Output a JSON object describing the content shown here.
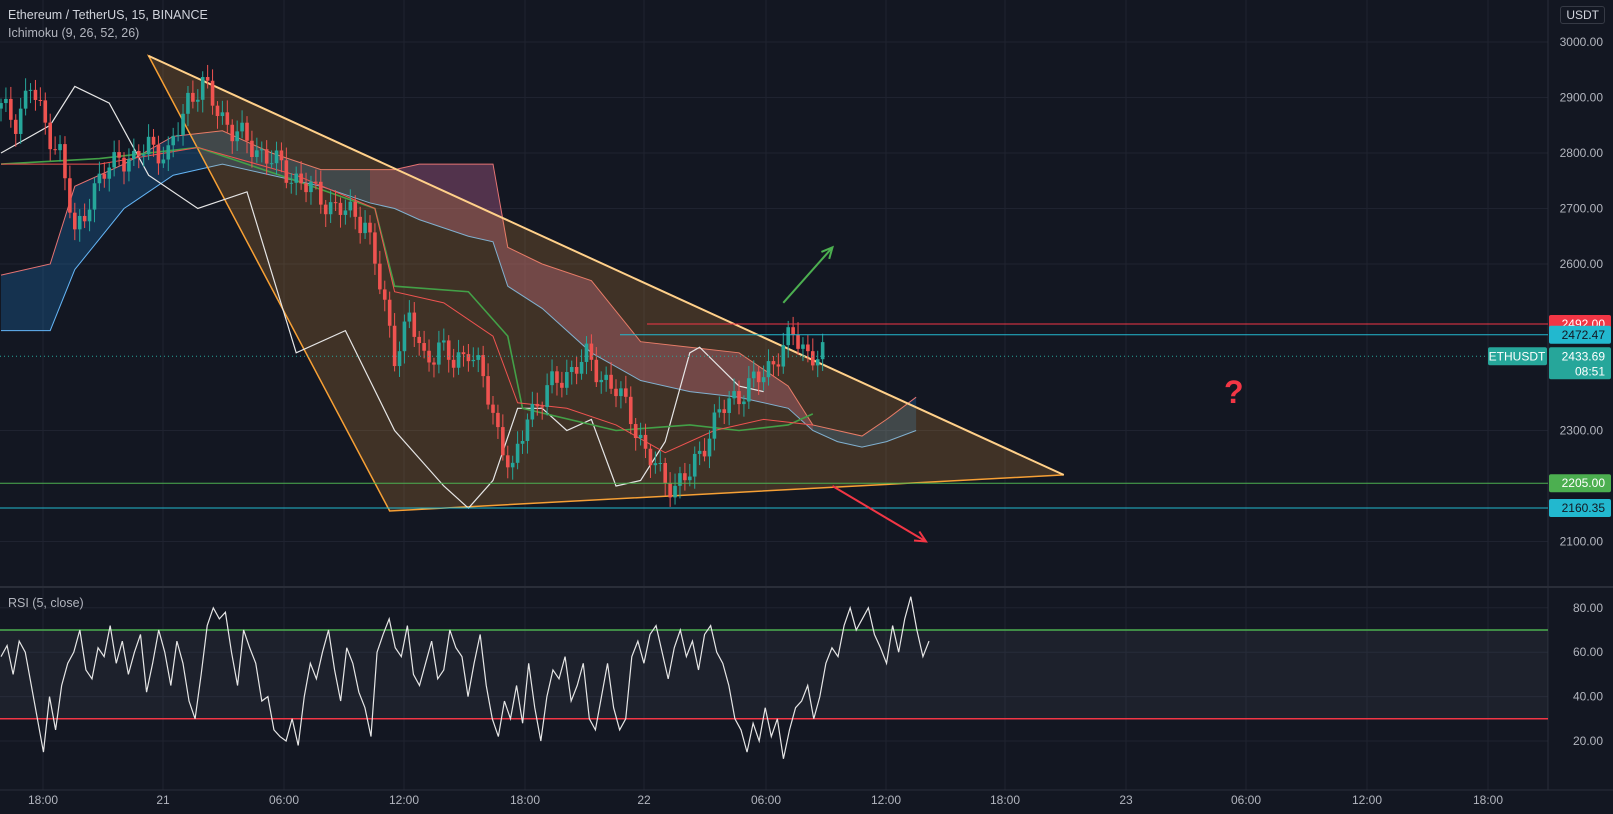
{
  "header": {
    "symbol": "Ethereum / TetherUS, 15, BINANCE",
    "indicator": "Ichimoku (9, 26, 52, 26)",
    "currency_button": "USDT"
  },
  "rsi_panel": {
    "title": "RSI (5, close)"
  },
  "markers": {
    "question": "?"
  },
  "colors": {
    "background": "#131722",
    "candle_up": "#26a69a",
    "candle_down": "#ef5350",
    "triangle": "#f7a035",
    "resistance": "#f23645",
    "support": "#4caf50",
    "level_cyan": "#22b8cf"
  },
  "chart_data": [
    {
      "type": "candlestick",
      "title": "Ethereum / TetherUS, 15, BINANCE",
      "y_ticks": [
        3000,
        2900,
        2800,
        2700,
        2600,
        2300,
        2100
      ],
      "ylim": [
        2050,
        3025
      ],
      "x_ticks": [
        "18:00",
        "21",
        "06:00",
        "12:00",
        "18:00",
        "22",
        "06:00",
        "12:00",
        "18:00",
        "23",
        "06:00",
        "12:00",
        "18:00"
      ],
      "current_price": {
        "symbol": "ETHUSDT",
        "price": 2433.69,
        "countdown": "08:51"
      },
      "price_levels": [
        {
          "value": 2492.0,
          "label": "2492.00",
          "color": "#f23645"
        },
        {
          "value": 2472.47,
          "label": "2472.47",
          "color": "#22b8cf"
        },
        {
          "value": 2205.0,
          "label": "2205.00",
          "color": "#4caf50"
        },
        {
          "value": 2160.35,
          "label": "2160.35",
          "color": "#22b8cf"
        }
      ],
      "close_path": [
        [
          0,
          2880
        ],
        [
          3,
          2860
        ],
        [
          6,
          2920
        ],
        [
          9,
          2850
        ],
        [
          12,
          2800
        ],
        [
          15,
          2650
        ],
        [
          18,
          2720
        ],
        [
          21,
          2760
        ],
        [
          24,
          2800
        ],
        [
          27,
          2780
        ],
        [
          30,
          2820
        ],
        [
          34,
          2790
        ],
        [
          38,
          2900
        ],
        [
          41,
          2920
        ],
        [
          44,
          2880
        ],
        [
          47,
          2840
        ],
        [
          50,
          2820
        ],
        [
          53,
          2800
        ],
        [
          56,
          2780
        ],
        [
          59,
          2760
        ],
        [
          62,
          2740
        ],
        [
          65,
          2720
        ],
        [
          68,
          2700
        ],
        [
          71,
          2690
        ],
        [
          74,
          2680
        ],
        [
          77,
          2560
        ],
        [
          80,
          2440
        ],
        [
          83,
          2500
        ],
        [
          86,
          2430
        ],
        [
          89,
          2450
        ],
        [
          92,
          2420
        ],
        [
          95,
          2450
        ],
        [
          98,
          2390
        ],
        [
          101,
          2300
        ],
        [
          104,
          2220
        ],
        [
          107,
          2330
        ],
        [
          110,
          2360
        ],
        [
          113,
          2390
        ],
        [
          116,
          2410
        ],
        [
          119,
          2430
        ],
        [
          122,
          2400
        ],
        [
          125,
          2370
        ],
        [
          128,
          2330
        ],
        [
          131,
          2260
        ],
        [
          134,
          2220
        ],
        [
          137,
          2200
        ],
        [
          140,
          2220
        ],
        [
          143,
          2280
        ],
        [
          146,
          2330
        ],
        [
          149,
          2360
        ],
        [
          152,
          2380
        ],
        [
          155,
          2400
        ],
        [
          158,
          2440
        ],
        [
          161,
          2470
        ],
        [
          164,
          2440
        ],
        [
          167,
          2434
        ]
      ],
      "tenkan": [
        [
          0,
          2780
        ],
        [
          20,
          2780
        ],
        [
          40,
          2810
        ],
        [
          60,
          2760
        ],
        [
          76,
          2700
        ],
        [
          80,
          2550
        ],
        [
          90,
          2530
        ],
        [
          100,
          2470
        ],
        [
          105,
          2350
        ],
        [
          115,
          2340
        ],
        [
          125,
          2310
        ],
        [
          135,
          2260
        ],
        [
          145,
          2300
        ],
        [
          155,
          2320
        ],
        [
          165,
          2310
        ]
      ],
      "kijun": [
        [
          0,
          2780
        ],
        [
          20,
          2790
        ],
        [
          40,
          2810
        ],
        [
          60,
          2750
        ],
        [
          76,
          2700
        ],
        [
          80,
          2560
        ],
        [
          95,
          2550
        ],
        [
          103,
          2470
        ],
        [
          106,
          2340
        ],
        [
          125,
          2300
        ],
        [
          140,
          2310
        ],
        [
          150,
          2300
        ],
        [
          160,
          2310
        ],
        [
          165,
          2330
        ]
      ],
      "chikou": [
        [
          0,
          2800
        ],
        [
          10,
          2850
        ],
        [
          15,
          2920
        ],
        [
          22,
          2890
        ],
        [
          30,
          2760
        ],
        [
          40,
          2700
        ],
        [
          50,
          2730
        ],
        [
          60,
          2440
        ],
        [
          70,
          2480
        ],
        [
          80,
          2300
        ],
        [
          85,
          2250
        ],
        [
          90,
          2200
        ],
        [
          95,
          2160
        ],
        [
          100,
          2210
        ],
        [
          105,
          2340
        ],
        [
          110,
          2340
        ],
        [
          115,
          2300
        ],
        [
          120,
          2320
        ],
        [
          125,
          2200
        ],
        [
          130,
          2210
        ],
        [
          135,
          2280
        ],
        [
          140,
          2440
        ],
        [
          142,
          2450
        ],
        [
          150,
          2380
        ],
        [
          155,
          2370
        ]
      ],
      "cloud_upper": [
        [
          0,
          2580
        ],
        [
          10,
          2600
        ],
        [
          15,
          2740
        ],
        [
          25,
          2780
        ],
        [
          35,
          2830
        ],
        [
          45,
          2840
        ],
        [
          55,
          2800
        ],
        [
          65,
          2770
        ],
        [
          75,
          2770
        ],
        [
          80,
          2770
        ],
        [
          85,
          2780
        ],
        [
          95,
          2780
        ],
        [
          100,
          2780
        ],
        [
          103,
          2630
        ],
        [
          110,
          2600
        ],
        [
          120,
          2570
        ],
        [
          130,
          2460
        ],
        [
          140,
          2450
        ],
        [
          150,
          2440
        ],
        [
          160,
          2380
        ],
        [
          165,
          2310
        ],
        [
          170,
          2300
        ],
        [
          175,
          2290
        ],
        [
          180,
          2320
        ],
        [
          186,
          2360
        ]
      ],
      "cloud_lower": [
        [
          0,
          2480
        ],
        [
          10,
          2480
        ],
        [
          15,
          2590
        ],
        [
          25,
          2700
        ],
        [
          35,
          2760
        ],
        [
          45,
          2780
        ],
        [
          55,
          2760
        ],
        [
          65,
          2740
        ],
        [
          75,
          2710
        ],
        [
          80,
          2700
        ],
        [
          85,
          2680
        ],
        [
          95,
          2650
        ],
        [
          100,
          2640
        ],
        [
          103,
          2560
        ],
        [
          110,
          2520
        ],
        [
          120,
          2440
        ],
        [
          130,
          2390
        ],
        [
          140,
          2370
        ],
        [
          150,
          2360
        ],
        [
          160,
          2340
        ],
        [
          165,
          2300
        ],
        [
          170,
          2280
        ],
        [
          175,
          2270
        ],
        [
          180,
          2280
        ],
        [
          186,
          2300
        ]
      ],
      "triangle": [
        [
          30,
          2975
        ],
        [
          79,
          2155
        ],
        [
          216,
          2220
        ]
      ],
      "arrows": [
        {
          "from": [
            159,
            2530
          ],
          "to": [
            169,
            2630
          ],
          "color": "#4caf50"
        },
        {
          "from": [
            169,
            2200
          ],
          "to": [
            188,
            2100
          ],
          "color": "#f23645"
        }
      ]
    },
    {
      "type": "line",
      "title": "RSI (5, close)",
      "y_ticks": [
        80,
        60,
        40,
        20
      ],
      "ylim": [
        10,
        90
      ],
      "levels": [
        70,
        30
      ],
      "values": [
        58,
        63,
        50,
        65,
        60,
        45,
        30,
        15,
        40,
        25,
        45,
        55,
        60,
        70,
        52,
        48,
        62,
        58,
        72,
        55,
        65,
        50,
        60,
        68,
        42,
        55,
        70,
        60,
        45,
        65,
        55,
        38,
        30,
        50,
        72,
        80,
        75,
        78,
        60,
        45,
        70,
        62,
        55,
        38,
        40,
        25,
        22,
        20,
        30,
        18,
        40,
        55,
        48,
        60,
        70,
        52,
        38,
        62,
        55,
        42,
        35,
        22,
        60,
        68,
        75,
        62,
        58,
        72,
        50,
        45,
        55,
        65,
        48,
        52,
        70,
        62,
        58,
        40,
        55,
        68,
        45,
        30,
        22,
        38,
        30,
        45,
        28,
        55,
        35,
        20,
        40,
        52,
        48,
        58,
        38,
        45,
        55,
        30,
        25,
        40,
        55,
        35,
        25,
        30,
        58,
        65,
        55,
        68,
        72,
        60,
        48,
        62,
        70,
        58,
        65,
        52,
        68,
        72,
        60,
        55,
        45,
        30,
        25,
        15,
        28,
        20,
        35,
        22,
        30,
        12,
        25,
        35,
        38,
        45,
        30,
        40,
        55,
        62,
        58,
        72,
        80,
        70,
        75,
        80,
        68,
        62,
        55,
        72,
        60,
        75,
        85,
        70,
        58,
        65
      ]
    }
  ]
}
